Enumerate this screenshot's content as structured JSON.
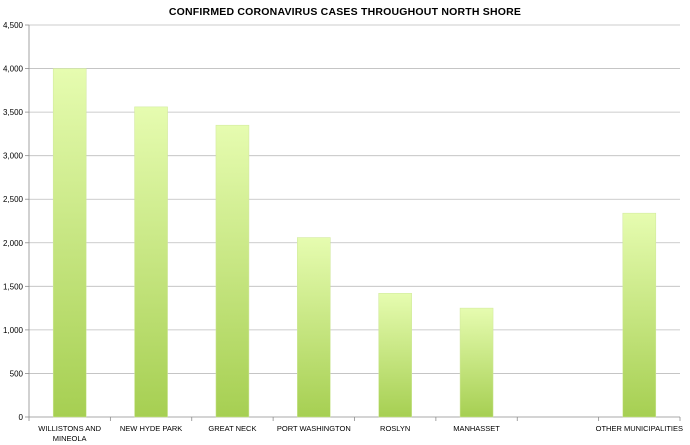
{
  "chart_data": {
    "type": "bar",
    "title": "CONFIRMED CORONAVIRUS CASES THROUGHOUT NORTH SHORE",
    "xlabel": "",
    "ylabel": "",
    "categories": [
      [
        "WILLISTONS AND",
        "MINEOLA"
      ],
      [
        "NEW HYDE PARK"
      ],
      [
        "GREAT NECK"
      ],
      [
        "PORT WASHINGTON"
      ],
      [
        "ROSLYN"
      ],
      [
        "MANHASSET"
      ],
      [
        ""
      ],
      [
        "OTHER MUNICIPALITIES"
      ]
    ],
    "values": [
      4000,
      3560,
      3350,
      2060,
      1420,
      1250,
      null,
      2340
    ],
    "ylim": [
      0,
      4500
    ],
    "yticks": [
      0,
      500,
      1000,
      1500,
      2000,
      2500,
      3000,
      3500,
      4000,
      4500
    ],
    "ytick_labels": [
      "0",
      "500",
      "1,000",
      "1,500",
      "2,000",
      "2,500",
      "3,000",
      "3,500",
      "4,000",
      "4,500"
    ],
    "grid": true,
    "legend": "none",
    "colors": {
      "bar_top": "#e6fcb0",
      "bar_bottom": "#a6cf52",
      "grid": "#bdbdbd",
      "axis": "#8c8c8c"
    }
  }
}
